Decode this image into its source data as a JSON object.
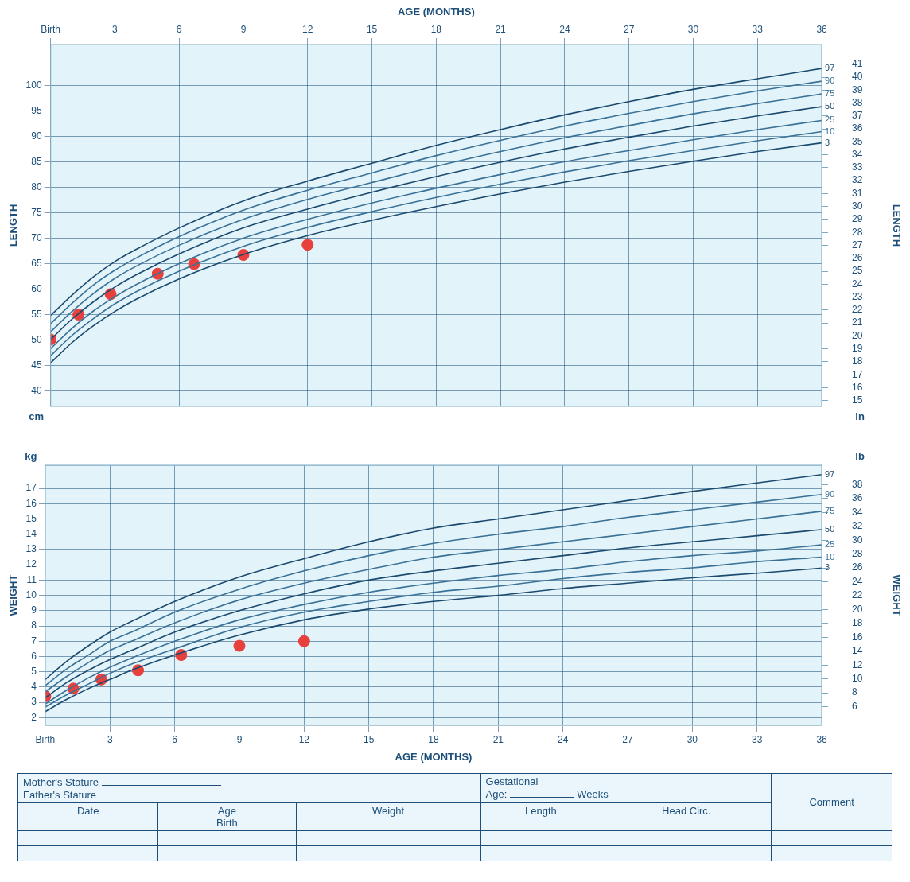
{
  "chart_data": [
    {
      "type": "line",
      "xlabel": "AGE (MONTHS)",
      "ylabel": "LENGTH",
      "y2label": "LENGTH",
      "annotations": [
        "cm",
        "in"
      ],
      "x": [
        0,
        1,
        2,
        3,
        4,
        6,
        9,
        12,
        15,
        18,
        21,
        24,
        27,
        30,
        33,
        36
      ],
      "xlim": [
        0,
        36
      ],
      "xticks": [
        {
          "value": 0,
          "label": "Birth"
        },
        3,
        6,
        9,
        12,
        15,
        18,
        21,
        24,
        27,
        30,
        33,
        36
      ],
      "ylim": [
        37,
        108
      ],
      "yticks": [
        40,
        45,
        50,
        55,
        60,
        65,
        70,
        75,
        80,
        85,
        90,
        95,
        100
      ],
      "y2lim": [
        14.57,
        42.52
      ],
      "y2ticks": [
        15,
        16,
        17,
        18,
        19,
        20,
        21,
        22,
        23,
        24,
        25,
        26,
        27,
        28,
        29,
        30,
        31,
        32,
        33,
        34,
        35,
        36,
        37,
        38,
        39,
        40,
        41
      ],
      "grid": true,
      "legend": false,
      "series": [
        {
          "name": "97",
          "color": "#1b4a6e",
          "values": [
            54.8,
            58.8,
            62.4,
            65.4,
            67.8,
            72.0,
            77.3,
            81.2,
            84.7,
            88.2,
            91.3,
            94.2,
            96.8,
            99.2,
            101.3,
            103.3
          ]
        },
        {
          "name": "90",
          "color": "#3a7196",
          "values": [
            53.2,
            57.2,
            60.8,
            63.7,
            66.1,
            70.3,
            75.5,
            79.4,
            82.8,
            86.2,
            89.2,
            92.0,
            94.5,
            96.8,
            98.9,
            100.8
          ]
        },
        {
          "name": "75",
          "color": "#3a7196",
          "values": [
            51.6,
            55.6,
            59.1,
            62.1,
            64.5,
            68.6,
            73.7,
            77.6,
            80.9,
            84.1,
            87.0,
            89.7,
            92.1,
            94.4,
            96.4,
            98.3
          ]
        },
        {
          "name": "50",
          "color": "#1b4a6e",
          "values": [
            50.1,
            54.1,
            57.5,
            60.4,
            62.8,
            66.9,
            72.0,
            75.7,
            79.0,
            82.1,
            84.9,
            87.5,
            89.8,
            92.0,
            94.0,
            95.8
          ]
        },
        {
          "name": "25",
          "color": "#3a7196",
          "values": [
            48.3,
            52.3,
            55.7,
            58.5,
            60.9,
            65.0,
            70.0,
            73.7,
            76.9,
            79.8,
            82.5,
            85.0,
            87.2,
            89.3,
            91.3,
            93.1
          ]
        },
        {
          "name": "10",
          "color": "#3a7196",
          "values": [
            46.9,
            50.9,
            54.2,
            57.1,
            59.5,
            63.5,
            68.4,
            72.1,
            75.2,
            78.0,
            80.6,
            83.0,
            85.2,
            87.2,
            89.1,
            90.9
          ]
        },
        {
          "name": "3",
          "color": "#1b4a6e",
          "values": [
            45.5,
            49.5,
            52.8,
            55.6,
            58.0,
            62.0,
            66.8,
            70.5,
            73.5,
            76.2,
            78.7,
            81.0,
            83.1,
            85.1,
            87.0,
            88.7
          ]
        },
        {
          "type": "scatter",
          "marker": "circle",
          "color": "#e8403c",
          "x": [
            0,
            1.3,
            2.8,
            5,
            6.7,
            9,
            12
          ],
          "values": [
            50.1,
            55.0,
            59.0,
            63.0,
            64.9,
            66.7,
            68.7
          ]
        }
      ]
    },
    {
      "type": "line",
      "xlabel": "AGE (MONTHS)",
      "ylabel": "WEIGHT",
      "y2label": "WEIGHT",
      "annotations": [
        "kg",
        "lb"
      ],
      "x": [
        0,
        1,
        2,
        3,
        4,
        6,
        9,
        12,
        15,
        18,
        21,
        24,
        27,
        30,
        33,
        36
      ],
      "xlim": [
        0,
        36
      ],
      "xticks": [
        {
          "value": 0,
          "label": "Birth"
        },
        3,
        6,
        9,
        12,
        15,
        18,
        21,
        24,
        27,
        30,
        33,
        36
      ],
      "ylim": [
        1.5,
        18.5
      ],
      "yticks": [
        2,
        3,
        4,
        5,
        6,
        7,
        8,
        9,
        10,
        11,
        12,
        13,
        14,
        15,
        16,
        17
      ],
      "y2lim": [
        3.31,
        40.79
      ],
      "y2ticks": [
        6,
        8,
        10,
        12,
        14,
        16,
        18,
        20,
        22,
        24,
        26,
        28,
        30,
        32,
        34,
        36,
        38
      ],
      "grid": true,
      "legend": false,
      "series": [
        {
          "name": "97",
          "color": "#1b4a6e",
          "values": [
            4.5,
            5.7,
            6.7,
            7.6,
            8.3,
            9.6,
            11.2,
            12.4,
            13.5,
            14.4,
            15.0,
            15.6,
            16.2,
            16.8,
            17.35,
            17.9
          ]
        },
        {
          "name": "90",
          "color": "#3a7196",
          "values": [
            4.1,
            5.2,
            6.1,
            7.0,
            7.6,
            8.9,
            10.4,
            11.6,
            12.6,
            13.4,
            14.0,
            14.5,
            15.1,
            15.6,
            16.1,
            16.6
          ]
        },
        {
          "name": "75",
          "color": "#3a7196",
          "values": [
            3.7,
            4.7,
            5.6,
            6.4,
            7.0,
            8.2,
            9.7,
            10.8,
            11.7,
            12.5,
            13.0,
            13.5,
            14.0,
            14.5,
            15.0,
            15.5
          ]
        },
        {
          "name": "50",
          "color": "#1b4a6e",
          "values": [
            3.3,
            4.3,
            5.1,
            5.8,
            6.4,
            7.6,
            9.0,
            10.1,
            11.0,
            11.6,
            12.1,
            12.6,
            13.1,
            13.5,
            13.9,
            14.3
          ]
        },
        {
          "name": "25",
          "color": "#3a7196",
          "values": [
            2.9,
            3.8,
            4.6,
            5.3,
            5.9,
            7.0,
            8.4,
            9.4,
            10.2,
            10.8,
            11.3,
            11.7,
            12.2,
            12.6,
            12.9,
            13.3
          ]
        },
        {
          "name": "10",
          "color": "#3a7196",
          "values": [
            2.7,
            3.5,
            4.2,
            4.9,
            5.5,
            6.5,
            7.9,
            8.9,
            9.6,
            10.2,
            10.6,
            11.1,
            11.5,
            11.8,
            12.2,
            12.5
          ]
        },
        {
          "name": "3",
          "color": "#1b4a6e",
          "values": [
            2.4,
            3.2,
            3.9,
            4.5,
            5.1,
            6.1,
            7.4,
            8.4,
            9.1,
            9.6,
            10.0,
            10.45,
            10.8,
            11.15,
            11.45,
            11.78
          ]
        },
        {
          "type": "scatter",
          "marker": "circle",
          "color": "#e8403c",
          "x": [
            0,
            1.3,
            2.6,
            4.3,
            6.3,
            9,
            12
          ],
          "values": [
            3.4,
            3.9,
            4.5,
            5.1,
            6.1,
            6.7,
            7.0
          ]
        }
      ]
    },
    {
      "type": "other",
      "annotations": [
        "Mother's Stature",
        "Father's Stature",
        "Gestational",
        "Age:",
        "Weeks",
        "Comment",
        "Date",
        "Age",
        "Birth",
        "Weight",
        "Length",
        "Head Circ."
      ]
    }
  ]
}
